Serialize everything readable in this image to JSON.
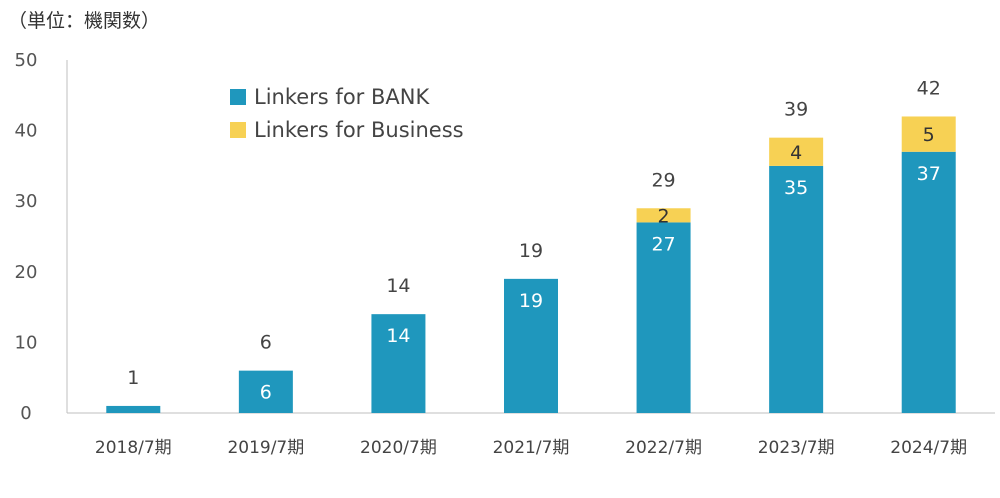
{
  "unit_label": "（単位：機関数）",
  "colors": {
    "bank": "#1f97bd",
    "business": "#f7d154",
    "axis": "#bfbfbf"
  },
  "chart_data": {
    "type": "bar",
    "stacked": true,
    "title": "",
    "xlabel": "",
    "ylabel": "（単位：機関数）",
    "ylim": [
      0,
      50
    ],
    "yticks": [
      0,
      10,
      20,
      30,
      40,
      50
    ],
    "grid": false,
    "legend_position": "top-left",
    "categories": [
      "2018/7期",
      "2019/7期",
      "2020/7期",
      "2021/7期",
      "2022/7期",
      "2023/7期",
      "2024/7期"
    ],
    "series": [
      {
        "name": "Linkers for BANK",
        "values": [
          1,
          6,
          14,
          19,
          27,
          35,
          37
        ],
        "labels": [
          "",
          "6",
          "14",
          "19",
          "27",
          "35",
          "37"
        ]
      },
      {
        "name": "Linkers for Business",
        "values": [
          0,
          0,
          0,
          0,
          2,
          4,
          5
        ],
        "labels": [
          "",
          "",
          "",
          "",
          "2",
          "4",
          "5"
        ]
      }
    ],
    "totals": [
      1,
      6,
      14,
      19,
      29,
      39,
      42
    ]
  }
}
